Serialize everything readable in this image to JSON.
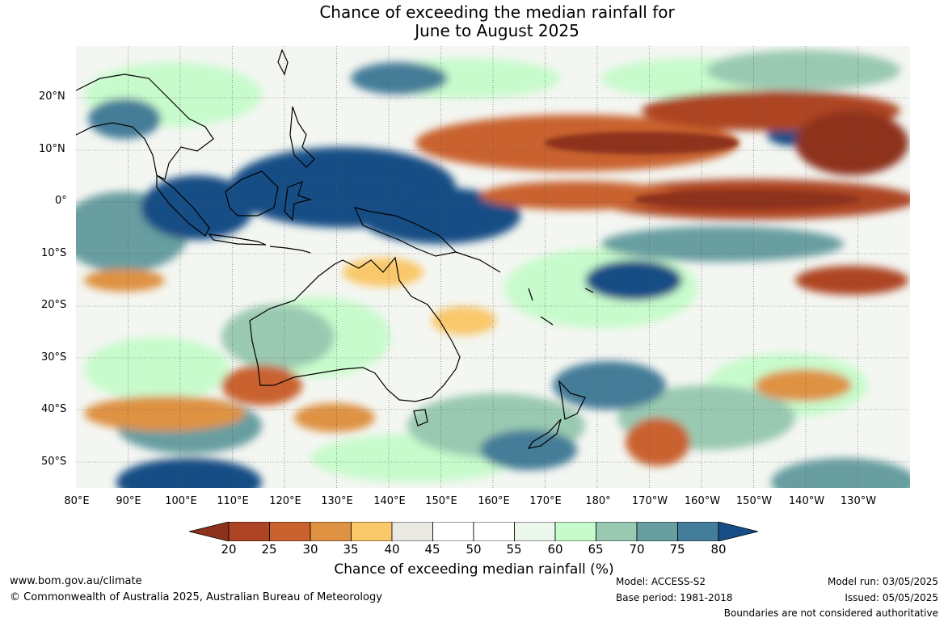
{
  "title_line1": "Chance of exceeding the median rainfall for",
  "title_line2": "June to August 2025",
  "map": {
    "lat_labels": [
      "20°N",
      "10°N",
      "0°",
      "10°S",
      "20°S",
      "30°S",
      "40°S",
      "50°S"
    ],
    "lon_labels": [
      "80°E",
      "90°E",
      "100°E",
      "110°E",
      "120°E",
      "130°E",
      "140°E",
      "150°E",
      "160°E",
      "170°E",
      "180°",
      "170°W",
      "160°W",
      "150°W",
      "140°W",
      "130°W"
    ],
    "lat_values": [
      20,
      10,
      0,
      -10,
      -20,
      -30,
      -40,
      -50
    ],
    "lon_values": [
      80,
      90,
      100,
      110,
      120,
      130,
      140,
      150,
      160,
      170,
      180,
      190,
      200,
      210,
      220,
      230
    ],
    "extent": {
      "lon": [
        80,
        240
      ],
      "lat": [
        -55,
        30
      ]
    }
  },
  "colorbar": {
    "title": "Chance of exceeding median rainfall (%)",
    "ticks": [
      "20",
      "25",
      "30",
      "35",
      "40",
      "45",
      "50",
      "55",
      "60",
      "65",
      "70",
      "75",
      "80"
    ],
    "colors": [
      "#8e311a",
      "#ad4524",
      "#c9622e",
      "#de9242",
      "#f9c86a",
      "#ebe9e4",
      "#ffffff",
      "#ffffff",
      "#eaf7ea",
      "#c8fbcc",
      "#9ac9b1",
      "#679ea0",
      "#447d99",
      "#174e85"
    ]
  },
  "footer": {
    "url": "www.bom.gov.au/climate",
    "copyright": "© Commonwealth of Australia 2025, Australian Bureau of Meteorology",
    "model": "Model: ACCESS-S2",
    "base_period": "Base period: 1981-2018",
    "model_run": "Model run: 03/05/2025",
    "issued": "Issued: 05/05/2025",
    "disclaimer": "Boundaries are not considered authoritative"
  }
}
